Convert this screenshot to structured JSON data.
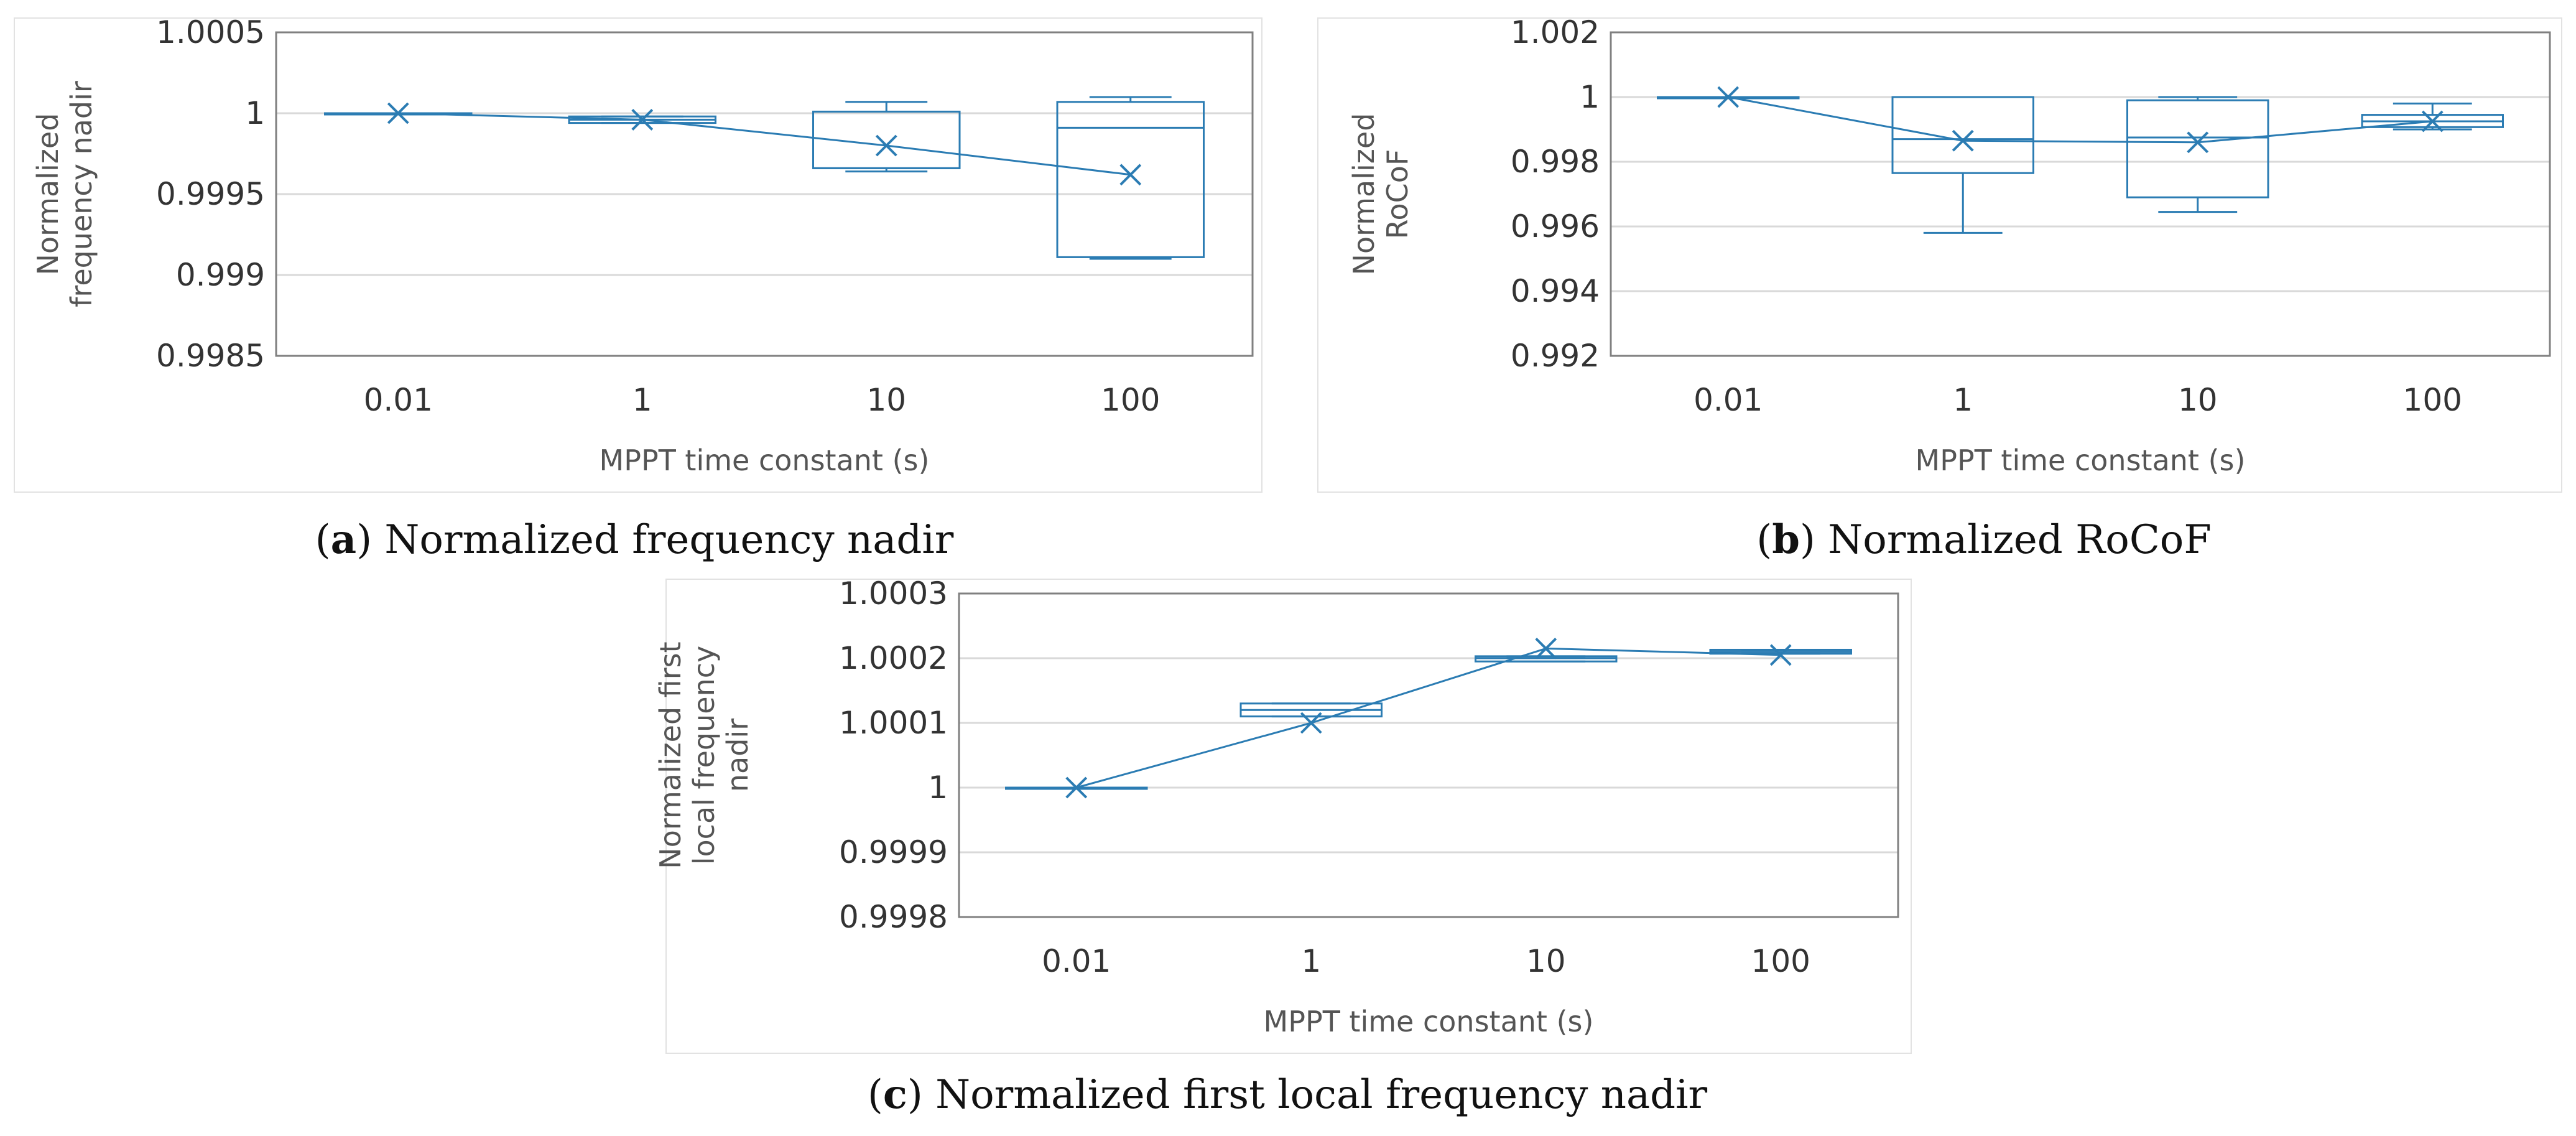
{
  "colors": {
    "series": "#2b7cb3",
    "grid": "#d9d9d9",
    "plot_border": "#808080",
    "text": "#333333"
  },
  "chart_data": [
    {
      "id": "a",
      "type": "box",
      "categories": [
        "0.01",
        "1",
        "10",
        "100"
      ],
      "xlabel": "MPPT time constant (s)",
      "ylabel_lines": [
        "Normalized",
        "frequency nadir"
      ],
      "ylim": [
        0.9985,
        1.0005
      ],
      "yticks": [
        "1.0005",
        "1",
        "0.9995",
        "0.999",
        "0.9985"
      ],
      "ytick_values": [
        1.0005,
        1.0,
        0.9995,
        0.999,
        0.9985
      ],
      "boxes": [
        {
          "whisker_low": 1.0,
          "q1": 1.0,
          "median": 1.0,
          "q3": 1.0,
          "whisker_high": 1.0,
          "mean": 1.0
        },
        {
          "whisker_low": 0.99994,
          "q1": 0.99994,
          "median": 0.99996,
          "q3": 0.99998,
          "whisker_high": 0.99998,
          "mean": 0.99996
        },
        {
          "whisker_low": 0.99964,
          "q1": 0.99966,
          "median": 0.99966,
          "q3": 1.00001,
          "whisker_high": 1.00007,
          "mean": 0.9998
        },
        {
          "whisker_low": 0.9991,
          "q1": 0.99911,
          "median": 0.99991,
          "q3": 1.00007,
          "whisker_high": 1.0001,
          "mean": 0.99962
        }
      ],
      "caption_letter": "a",
      "caption_text": "Normalized frequency nadir"
    },
    {
      "id": "b",
      "type": "box",
      "categories": [
        "0.01",
        "1",
        "10",
        "100"
      ],
      "xlabel": "MPPT time constant (s)",
      "ylabel_lines": [
        "Normalized",
        "RoCoF"
      ],
      "ylim": [
        0.992,
        1.002
      ],
      "yticks": [
        "1.002",
        "1",
        "0.998",
        "0.996",
        "0.994",
        "0.992"
      ],
      "ytick_values": [
        1.002,
        1.0,
        0.998,
        0.996,
        0.994,
        0.992
      ],
      "boxes": [
        {
          "whisker_low": 1.0,
          "q1": 1.0,
          "median": 1.0,
          "q3": 1.0,
          "whisker_high": 1.0,
          "mean": 1.0
        },
        {
          "whisker_low": 0.9958,
          "q1": 0.99765,
          "median": 0.9987,
          "q3": 1.0,
          "whisker_high": 1.0,
          "mean": 0.99865
        },
        {
          "whisker_low": 0.99645,
          "q1": 0.9969,
          "median": 0.99875,
          "q3": 0.9999,
          "whisker_high": 1.0,
          "mean": 0.9986
        },
        {
          "whisker_low": 0.999,
          "q1": 0.99907,
          "median": 0.99925,
          "q3": 0.99945,
          "whisker_high": 0.9998,
          "mean": 0.99925
        }
      ],
      "caption_letter": "b",
      "caption_text": "Normalized RoCoF"
    },
    {
      "id": "c",
      "type": "box",
      "categories": [
        "0.01",
        "1",
        "10",
        "100"
      ],
      "xlabel": "MPPT time constant (s)",
      "ylabel_lines": [
        "Normalized first",
        "local frequency",
        "nadir"
      ],
      "ylim": [
        0.9998,
        1.0003
      ],
      "yticks": [
        "1.0003",
        "1.0002",
        "1.0001",
        "1",
        "0.9999",
        "0.9998"
      ],
      "ytick_values": [
        1.0003,
        1.0002,
        1.0001,
        1.0,
        0.9999,
        0.9998
      ],
      "boxes": [
        {
          "whisker_low": 1.0,
          "q1": 1.0,
          "median": 1.0,
          "q3": 1.0,
          "whisker_high": 1.0,
          "mean": 1.0
        },
        {
          "whisker_low": 1.00011,
          "q1": 1.00011,
          "median": 1.00012,
          "q3": 1.00013,
          "whisker_high": 1.00013,
          "mean": 1.0001
        },
        {
          "whisker_low": 1.000195,
          "q1": 1.000195,
          "median": 1.0002,
          "q3": 1.000203,
          "whisker_high": 1.000203,
          "mean": 1.000215
        },
        {
          "whisker_low": 1.000207,
          "q1": 1.000207,
          "median": 1.00021,
          "q3": 1.000213,
          "whisker_high": 1.000213,
          "mean": 1.000205
        }
      ],
      "caption_letter": "c",
      "caption_text": "Normalized first local frequency nadir"
    }
  ]
}
